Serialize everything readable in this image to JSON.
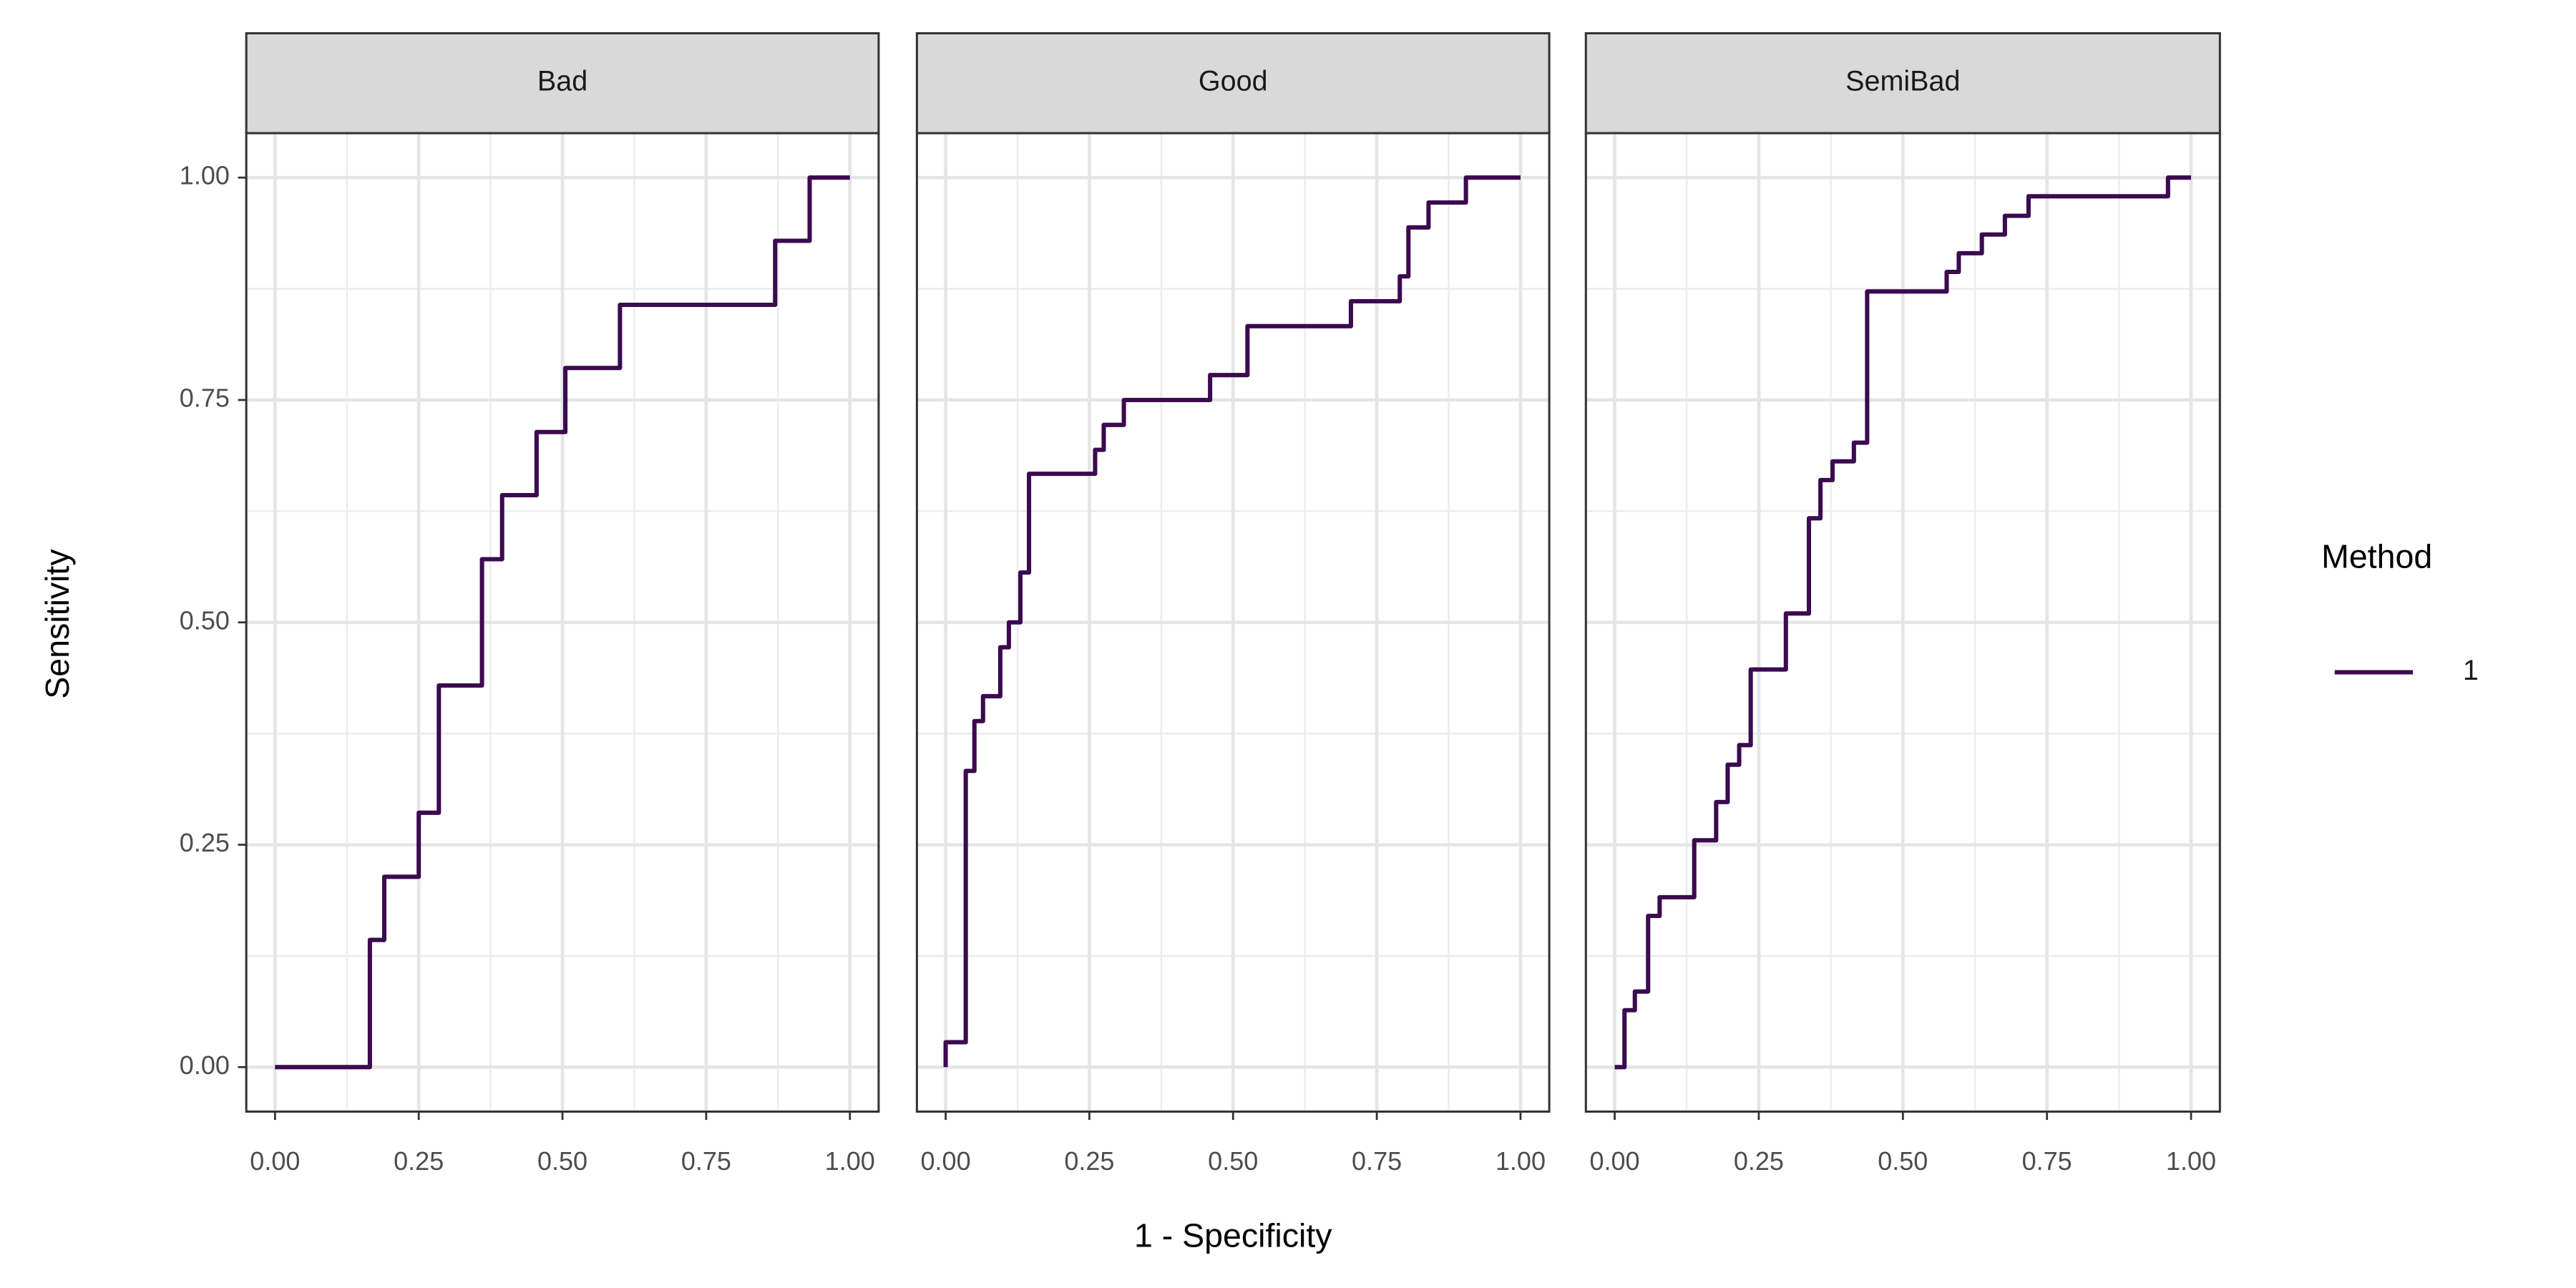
{
  "chart_data": {
    "type": "step",
    "x_label": "1 - Specificity",
    "y_label": "Sensitivity",
    "legend_title": "Method",
    "facets": [
      "Bad",
      "Good",
      "SemiBad"
    ],
    "xlim": [
      -0.05,
      1.05
    ],
    "ylim": [
      -0.05,
      1.05
    ],
    "xticks": [
      {
        "value": 0,
        "label": "0.00"
      },
      0.25,
      {
        "value": 0.5,
        "label": "0.50"
      },
      0.75,
      {
        "value": 1,
        "label": "1.00"
      }
    ],
    "yticks": [
      {
        "value": 0,
        "label": "0.00"
      },
      0.25,
      {
        "value": 0.5,
        "label": "0.50"
      },
      0.75,
      {
        "value": 1,
        "label": "1.00"
      }
    ],
    "grid": true,
    "series": [
      {
        "name": "1",
        "color": "#3b0a4f",
        "x": [
          [
            0,
            0.165,
            0.165,
            0.19,
            0.19,
            0.25,
            0.25,
            0.285,
            0.285,
            0.36,
            0.36,
            0.395,
            0.395,
            0.455,
            0.455,
            0.505,
            0.505,
            0.6,
            0.6,
            0.87,
            0.87,
            0.93,
            0.93,
            1
          ],
          [
            0,
            0,
            0.035,
            0.035,
            0.05,
            0.05,
            0.065,
            0.065,
            0.095,
            0.095,
            0.11,
            0.11,
            0.13,
            0.13,
            0.145,
            0.145,
            0.26,
            0.26,
            0.275,
            0.275,
            0.31,
            0.31,
            0.46,
            0.46,
            0.525,
            0.525,
            0.705,
            0.705,
            0.79,
            0.79,
            0.805,
            0.805,
            0.84,
            0.84,
            0.905,
            0.905,
            1
          ],
          [
            0,
            0.017,
            0.017,
            0.035,
            0.035,
            0.058,
            0.058,
            0.078,
            0.078,
            0.138,
            0.138,
            0.176,
            0.176,
            0.196,
            0.196,
            0.216,
            0.216,
            0.236,
            0.236,
            0.297,
            0.297,
            0.337,
            0.337,
            0.357,
            0.357,
            0.378,
            0.378,
            0.415,
            0.415,
            0.438,
            0.438,
            0.576,
            0.576,
            0.597,
            0.597,
            0.637,
            0.637,
            0.677,
            0.677,
            0.718,
            0.718,
            0.96,
            0.96,
            1
          ]
        ],
        "values": [
          [
            0,
            0,
            0.143,
            0.143,
            0.214,
            0.214,
            0.286,
            0.286,
            0.429,
            0.429,
            0.571,
            0.571,
            0.643,
            0.643,
            0.714,
            0.714,
            0.786,
            0.786,
            0.857,
            0.857,
            0.929,
            0.929,
            1,
            1
          ],
          [
            0,
            0.028,
            0.028,
            0.333,
            0.333,
            0.389,
            0.389,
            0.417,
            0.417,
            0.472,
            0.472,
            0.5,
            0.5,
            0.556,
            0.556,
            0.667,
            0.667,
            0.694,
            0.694,
            0.722,
            0.722,
            0.75,
            0.75,
            0.778,
            0.778,
            0.833,
            0.833,
            0.861,
            0.861,
            0.889,
            0.889,
            0.944,
            0.944,
            0.972,
            0.972,
            1,
            1
          ],
          [
            0,
            0,
            0.064,
            0.064,
            0.085,
            0.085,
            0.17,
            0.17,
            0.191,
            0.191,
            0.255,
            0.255,
            0.298,
            0.298,
            0.34,
            0.34,
            0.362,
            0.362,
            0.447,
            0.447,
            0.51,
            0.51,
            0.617,
            0.617,
            0.66,
            0.66,
            0.681,
            0.681,
            0.702,
            0.702,
            0.872,
            0.872,
            0.894,
            0.894,
            0.915,
            0.915,
            0.936,
            0.936,
            0.957,
            0.957,
            0.979,
            0.979,
            1,
            1
          ]
        ]
      }
    ]
  }
}
